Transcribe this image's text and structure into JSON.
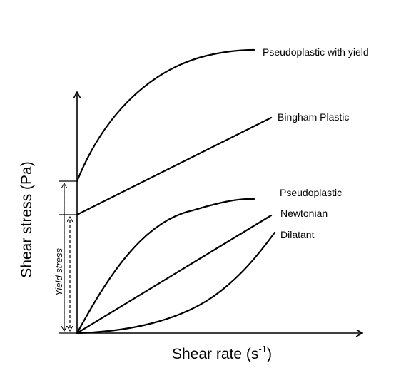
{
  "axes": {
    "x_label_base": "Shear rate (s",
    "x_label_sup": "-1",
    "x_label_close": ")",
    "y_label": "Shear stress (Pa)"
  },
  "curves": {
    "pseudoplastic_yield": "Pseudoplastic with yield",
    "bingham": "Bingham Plastic",
    "pseudoplastic": "Pseudoplastic",
    "newtonian": "Newtonian",
    "dilatant": "Dilatant"
  },
  "annotation": {
    "yield_stress": "Yield stress"
  },
  "colors": {
    "line": "#000000",
    "background": "#ffffff"
  }
}
